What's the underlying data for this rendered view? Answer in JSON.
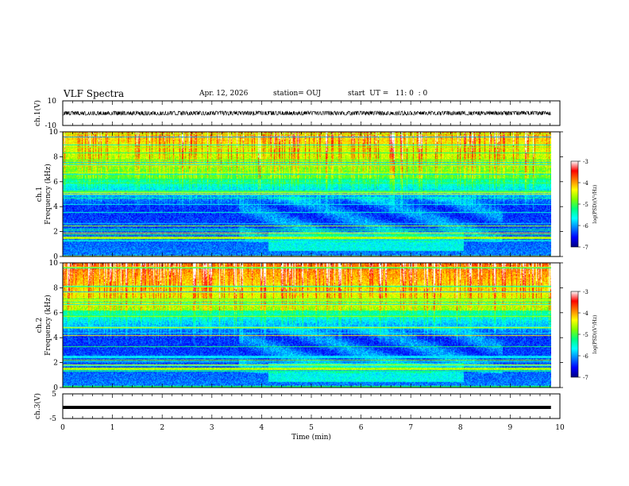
{
  "header": {
    "title": "VLF Spectra",
    "date": "Apr. 12, 2026",
    "station": "station= OUJ",
    "start": "start  UT =   11: 0  : 0"
  },
  "chart_data": [
    {
      "type": "line",
      "id": "ch1-waveform",
      "ylabel": "ch.1(V)",
      "ylim": [
        -10,
        10
      ],
      "y_ticks": [
        "10",
        "-10"
      ],
      "x_range_min": [
        0,
        10
      ],
      "data_extent_min": [
        0,
        9.82
      ],
      "waveform_level_v": 0,
      "waveform_amplitude_v": 1.5,
      "color": "#000000"
    },
    {
      "type": "heatmap",
      "id": "ch1-spectrogram",
      "ylabel": "ch.1\nFrequency  (kHz)",
      "ylim_khz": [
        0,
        10
      ],
      "y_ticks": [
        "0",
        "2",
        "4",
        "6",
        "8",
        "10"
      ],
      "data_extent_min": [
        0,
        9.82
      ],
      "colorbar": {
        "label": "log(PSD)(V²/Hz)",
        "range": [
          -7,
          -3
        ],
        "ticks": [
          "-3",
          "-4",
          "-5",
          "-6",
          "-7"
        ]
      }
    },
    {
      "type": "heatmap",
      "id": "ch2-spectrogram",
      "ylabel": "ch.2\nFrequency  (kHz)",
      "ylim_khz": [
        0,
        10
      ],
      "y_ticks": [
        "0",
        "2",
        "4",
        "6",
        "8",
        "10"
      ],
      "data_extent_min": [
        0,
        9.82
      ],
      "colorbar": {
        "label": "log(PSD)(V²/Hz)",
        "range": [
          -7,
          -3
        ],
        "ticks": [
          "-3",
          "-4",
          "-5",
          "-6",
          "-7"
        ]
      }
    },
    {
      "type": "line",
      "id": "ch3-waveform",
      "ylabel": "ch.3(V)",
      "ylim": [
        -5,
        5
      ],
      "y_ticks": [
        "5",
        "-5"
      ],
      "data_extent_min": [
        0,
        9.82
      ],
      "level_v": -0.5,
      "color": "#000000"
    }
  ],
  "x_axis": {
    "label": "Time  (min)",
    "range": [
      0,
      10
    ],
    "ticks": [
      "0",
      "1",
      "2",
      "3",
      "4",
      "5",
      "6",
      "7",
      "8",
      "9",
      "10"
    ]
  },
  "colors": {
    "colormap": [
      "#000080",
      "#0000ff",
      "#0080ff",
      "#00ffff",
      "#00ff80",
      "#80ff00",
      "#ffff00",
      "#ff8000",
      "#ff0000",
      "#ffffff"
    ],
    "axes": "#000000",
    "background": "#ffffff"
  }
}
